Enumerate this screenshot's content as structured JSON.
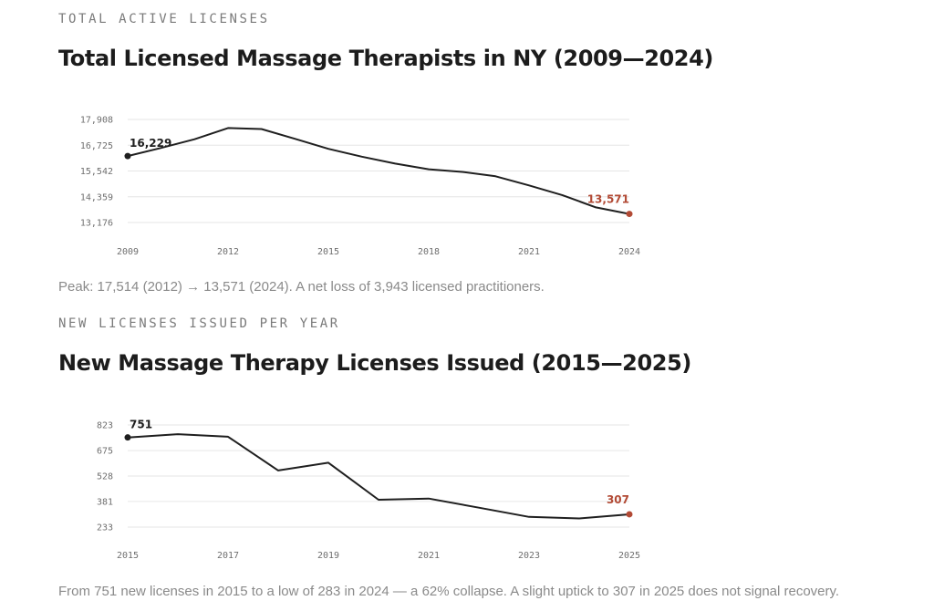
{
  "accent_color": "#b24a35",
  "line_color": "#1f1f1f",
  "charts": [
    {
      "kicker": "TOTAL ACTIVE LICENSES",
      "title": "Total Licensed Massage Therapists in NY (2009—2024)",
      "caption": "Peak: 17,514 (2012) → 13,571 (2024). A net loss of 3,943 licensed practitioners.",
      "start_label": "16,229",
      "end_label": "13,571"
    },
    {
      "kicker": "NEW LICENSES ISSUED PER YEAR",
      "title": "New Massage Therapy Licenses Issued (2015—2025)",
      "caption": "From 751 new licenses in 2015 to a low of 283 in 2024 — a 62% collapse. A slight uptick to 307 in 2025 does not signal recovery.",
      "start_label": "751",
      "end_label": "307"
    }
  ],
  "chart_data": [
    {
      "type": "line",
      "x": [
        2009,
        2010,
        2011,
        2012,
        2013,
        2014,
        2015,
        2016,
        2017,
        2018,
        2019,
        2020,
        2021,
        2022,
        2023,
        2024
      ],
      "series": [
        {
          "values": [
            16229,
            16600,
            17000,
            17514,
            17470,
            17020,
            16560,
            16200,
            15880,
            15620,
            15500,
            15300,
            14880,
            14430,
            13870,
            13571
          ]
        }
      ],
      "xticks": [
        "2009",
        "2012",
        "2015",
        "2018",
        "2021",
        "2024"
      ],
      "yticks": [
        "17,908",
        "16,725",
        "15,542",
        "14,359",
        "13,176"
      ],
      "ytick_values": [
        17908,
        16725,
        15542,
        14359,
        13176
      ],
      "ylim": [
        13176,
        17908
      ],
      "xlim": [
        2009,
        2024
      ],
      "grid": true
    },
    {
      "type": "line",
      "x": [
        2015,
        2016,
        2017,
        2018,
        2019,
        2020,
        2021,
        2022,
        2023,
        2024,
        2025
      ],
      "series": [
        {
          "values": [
            751,
            770,
            755,
            560,
            605,
            391,
            398,
            345,
            292,
            283,
            307
          ]
        }
      ],
      "xticks": [
        "2015",
        "2017",
        "2019",
        "2021",
        "2023",
        "2025"
      ],
      "yticks": [
        "823",
        "675",
        "528",
        "381",
        "233"
      ],
      "ytick_values": [
        823,
        675,
        528,
        381,
        233
      ],
      "ylim": [
        233,
        823
      ],
      "xlim": [
        2015,
        2025
      ],
      "grid": true
    }
  ]
}
